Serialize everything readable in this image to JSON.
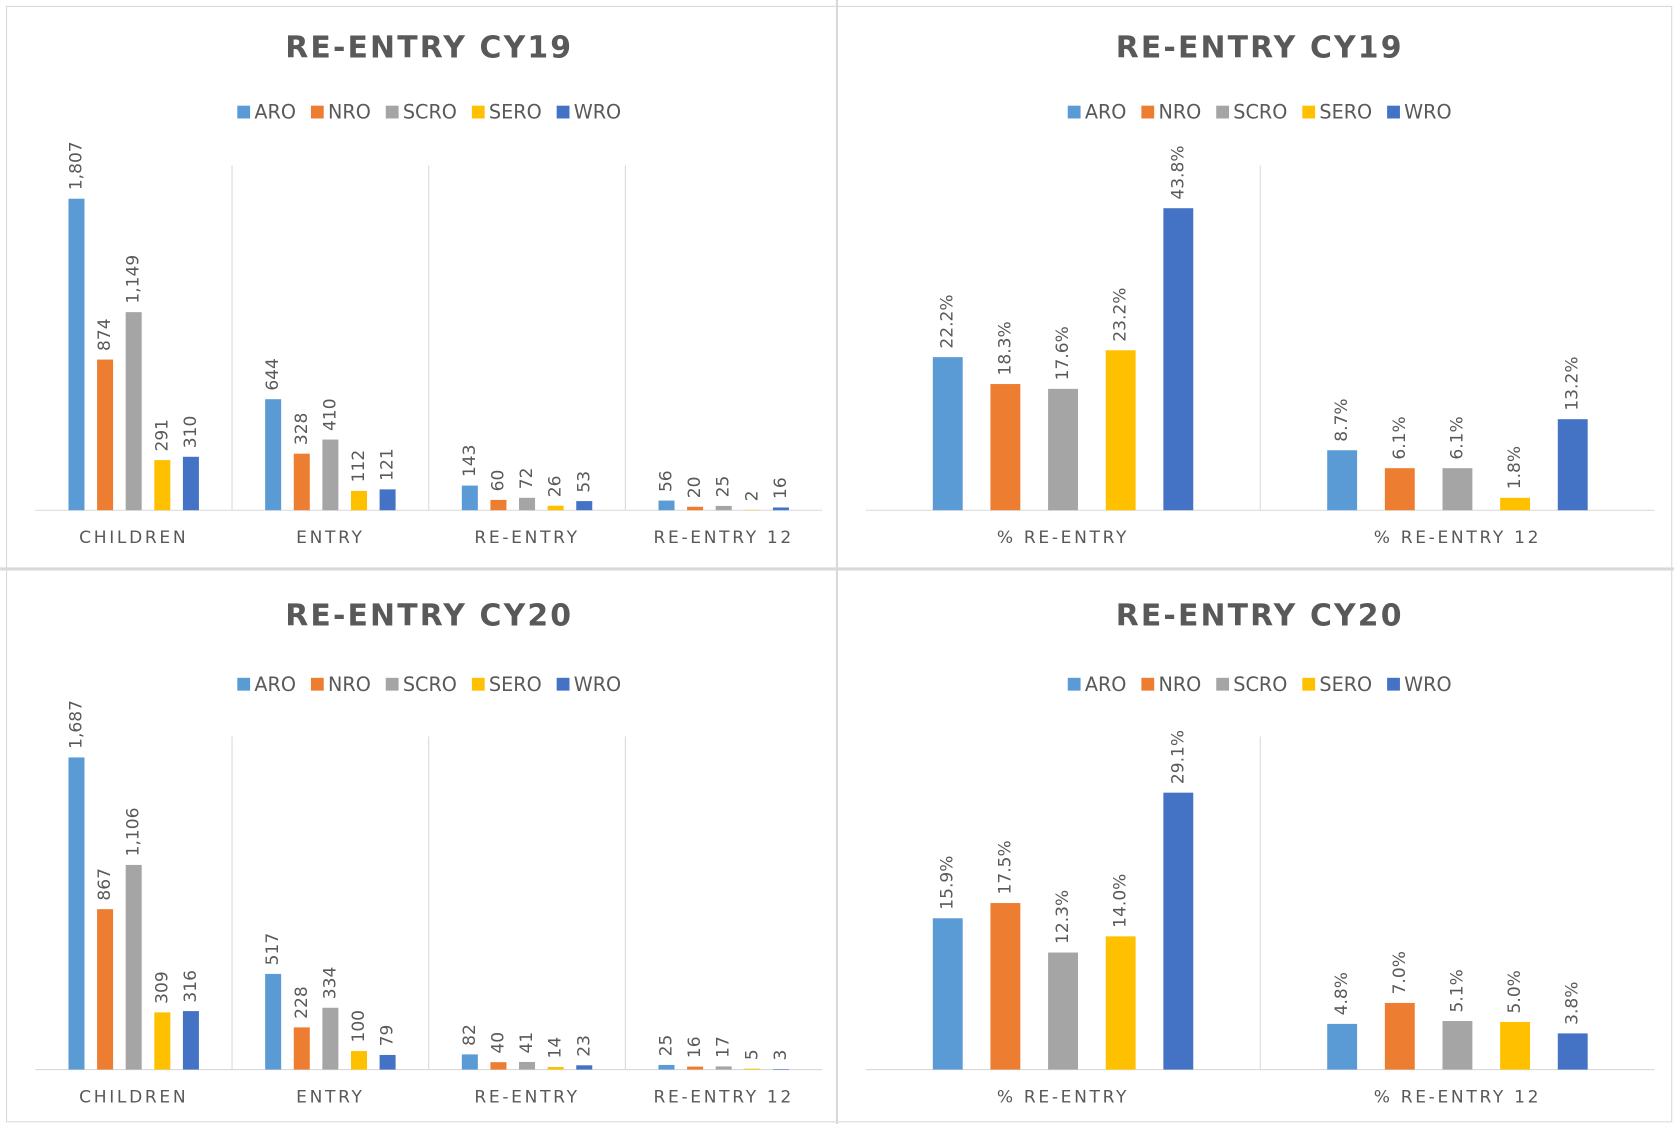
{
  "chart_data": [
    {
      "type": "bar",
      "title": "RE-ENTRY CY19",
      "categories": [
        "CHILDREN",
        "ENTRY",
        "RE-ENTRY",
        "RE-ENTRY 12"
      ],
      "ylim": [
        0,
        2000
      ],
      "series": [
        {
          "name": "ARO",
          "color": "#5b9bd5",
          "values": [
            1807,
            644,
            143,
            56
          ],
          "value_labels": [
            "1,807",
            "644",
            "143",
            "56"
          ]
        },
        {
          "name": "NRO",
          "color": "#ed7d31",
          "values": [
            874,
            328,
            60,
            20
          ],
          "value_labels": [
            "874",
            "328",
            "60",
            "20"
          ]
        },
        {
          "name": "SCRO",
          "color": "#a5a5a5",
          "values": [
            1149,
            410,
            72,
            25
          ],
          "value_labels": [
            "1,149",
            "410",
            "72",
            "25"
          ]
        },
        {
          "name": "SERO",
          "color": "#ffc000",
          "values": [
            291,
            112,
            26,
            2
          ],
          "value_labels": [
            "291",
            "112",
            "26",
            "2"
          ]
        },
        {
          "name": "WRO",
          "color": "#4472c4",
          "values": [
            310,
            121,
            53,
            16
          ],
          "value_labels": [
            "310",
            "121",
            "53",
            "16"
          ]
        }
      ]
    },
    {
      "type": "bar",
      "title": "RE-ENTRY CY19",
      "categories": [
        "% RE-ENTRY",
        "% RE-ENTRY 12"
      ],
      "ylim": [
        0,
        50
      ],
      "series": [
        {
          "name": "ARO",
          "color": "#5b9bd5",
          "values": [
            22.2,
            8.7
          ],
          "value_labels": [
            "22.2%",
            "8.7%"
          ]
        },
        {
          "name": "NRO",
          "color": "#ed7d31",
          "values": [
            18.3,
            6.1
          ],
          "value_labels": [
            "18.3%",
            "6.1%"
          ]
        },
        {
          "name": "SCRO",
          "color": "#a5a5a5",
          "values": [
            17.6,
            6.1
          ],
          "value_labels": [
            "17.6%",
            "6.1%"
          ]
        },
        {
          "name": "SERO",
          "color": "#ffc000",
          "values": [
            23.2,
            1.8
          ],
          "value_labels": [
            "23.2%",
            "1.8%"
          ]
        },
        {
          "name": "WRO",
          "color": "#4472c4",
          "values": [
            43.8,
            13.2
          ],
          "value_labels": [
            "43.8%",
            "13.2%"
          ]
        }
      ]
    },
    {
      "type": "bar",
      "title": "RE-ENTRY CY20",
      "categories": [
        "CHILDREN",
        "ENTRY",
        "RE-ENTRY",
        "RE-ENTRY 12"
      ],
      "ylim": [
        0,
        1800
      ],
      "series": [
        {
          "name": "ARO",
          "color": "#5b9bd5",
          "values": [
            1687,
            517,
            82,
            25
          ],
          "value_labels": [
            "1,687",
            "517",
            "82",
            "25"
          ]
        },
        {
          "name": "NRO",
          "color": "#ed7d31",
          "values": [
            867,
            228,
            40,
            16
          ],
          "value_labels": [
            "867",
            "228",
            "40",
            "16"
          ]
        },
        {
          "name": "SCRO",
          "color": "#a5a5a5",
          "values": [
            1106,
            334,
            41,
            17
          ],
          "value_labels": [
            "1,106",
            "334",
            "41",
            "17"
          ]
        },
        {
          "name": "SERO",
          "color": "#ffc000",
          "values": [
            309,
            100,
            14,
            5
          ],
          "value_labels": [
            "309",
            "100",
            "14",
            "5"
          ]
        },
        {
          "name": "WRO",
          "color": "#4472c4",
          "values": [
            316,
            79,
            23,
            3
          ],
          "value_labels": [
            "316",
            "79",
            "23",
            "3"
          ]
        }
      ]
    },
    {
      "type": "bar",
      "title": "RE-ENTRY CY20",
      "categories": [
        "% RE-ENTRY",
        "% RE-ENTRY 12"
      ],
      "ylim": [
        0,
        35
      ],
      "series": [
        {
          "name": "ARO",
          "color": "#5b9bd5",
          "values": [
            15.9,
            4.8
          ],
          "value_labels": [
            "15.9%",
            "4.8%"
          ]
        },
        {
          "name": "NRO",
          "color": "#ed7d31",
          "values": [
            17.5,
            7.0
          ],
          "value_labels": [
            "17.5%",
            "7.0%"
          ]
        },
        {
          "name": "SCRO",
          "color": "#a5a5a5",
          "values": [
            12.3,
            5.1
          ],
          "value_labels": [
            "12.3%",
            "5.1%"
          ]
        },
        {
          "name": "SERO",
          "color": "#ffc000",
          "values": [
            14.0,
            5.0
          ],
          "value_labels": [
            "14.0%",
            "5.0%"
          ]
        },
        {
          "name": "WRO",
          "color": "#4472c4",
          "values": [
            29.1,
            3.8
          ],
          "value_labels": [
            "29.1%",
            "3.8%"
          ]
        }
      ]
    }
  ]
}
